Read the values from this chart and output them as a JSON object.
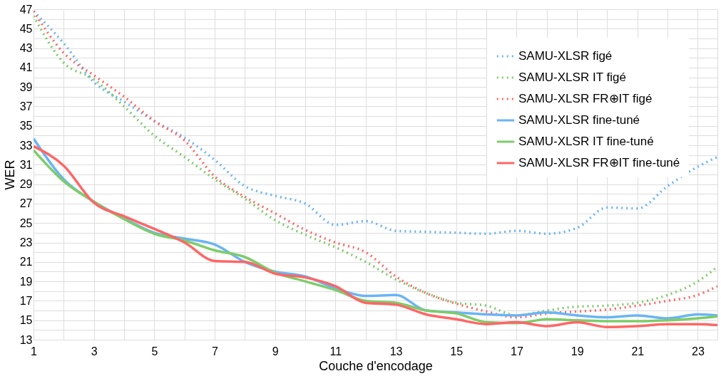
{
  "chart_data": {
    "type": "line",
    "xlabel": "Couche d'encodage",
    "ylabel": "WER",
    "x": [
      1,
      2,
      3,
      4,
      5,
      6,
      7,
      8,
      9,
      10,
      11,
      12,
      13,
      14,
      15,
      16,
      17,
      18,
      19,
      20,
      21,
      22,
      23,
      23.65
    ],
    "xlim": [
      1,
      23.65
    ],
    "xticks": [
      1,
      {
        "value": 2,
        "label": null
      },
      3,
      {
        "value": 4,
        "label": null
      },
      5,
      {
        "value": 6,
        "label": null
      },
      7,
      {
        "value": 8,
        "label": null
      },
      9,
      {
        "value": 10,
        "label": null
      },
      11,
      {
        "value": 12,
        "label": null
      },
      13,
      {
        "value": 14,
        "label": null
      },
      15,
      {
        "value": 16,
        "label": null
      },
      17,
      {
        "value": 18,
        "label": null
      },
      19,
      {
        "value": 20,
        "label": null
      },
      21,
      {
        "value": 22,
        "label": null
      },
      23
    ],
    "ylim": [
      13,
      47
    ],
    "yticks": [
      13,
      {
        "value": 14,
        "label": null
      },
      15,
      {
        "value": 16,
        "label": null
      },
      17,
      {
        "value": 18,
        "label": null
      },
      19,
      {
        "value": 20,
        "label": null
      },
      21,
      {
        "value": 22,
        "label": null
      },
      23,
      {
        "value": 24,
        "label": null
      },
      25,
      {
        "value": 26,
        "label": null
      },
      27,
      {
        "value": 28,
        "label": null
      },
      29,
      {
        "value": 30,
        "label": null
      },
      31,
      {
        "value": 32,
        "label": null
      },
      33,
      {
        "value": 34,
        "label": null
      },
      35,
      {
        "value": 36,
        "label": null
      },
      37,
      {
        "value": 38,
        "label": null
      },
      39,
      {
        "value": 40,
        "label": null
      },
      41,
      {
        "value": 42,
        "label": null
      },
      43,
      {
        "value": 44,
        "label": null
      },
      45,
      {
        "value": 46,
        "label": null
      },
      47
    ],
    "grid": true,
    "legend": "top right",
    "marker": "none",
    "series": [
      {
        "name": "SAMU-XLSR figé",
        "color": "#6ab4f5",
        "line_style": "dotted",
        "values": [
          46.8,
          43.5,
          39.5,
          37.5,
          35.5,
          33.8,
          31.5,
          28.8,
          27.8,
          27.0,
          24.8,
          25.2,
          24.2,
          24.1,
          24.0,
          23.9,
          24.2,
          23.9,
          24.5,
          26.6,
          26.5,
          28.8,
          30.8,
          31.8
        ]
      },
      {
        "name": "SAMU-XLSR IT figé",
        "color": "#7dcc6a",
        "line_style": "dotted",
        "values": [
          46.3,
          41.5,
          39.8,
          37.0,
          34.0,
          31.8,
          29.5,
          27.5,
          25.3,
          23.8,
          22.5,
          21.0,
          19.2,
          17.8,
          16.8,
          16.5,
          15.5,
          16.0,
          16.4,
          16.5,
          16.8,
          17.6,
          19.0,
          20.5
        ]
      },
      {
        "name": "SAMU-XLSR FR⊕IT figé",
        "color": "#ff6666",
        "line_style": "dotted",
        "values": [
          46.8,
          42.5,
          40.2,
          38.0,
          35.5,
          33.5,
          29.8,
          27.7,
          26.0,
          24.3,
          23.0,
          22.0,
          19.5,
          17.8,
          16.7,
          15.9,
          15.3,
          15.7,
          15.9,
          16.1,
          16.5,
          17.0,
          17.6,
          18.5
        ]
      },
      {
        "name": "SAMU-XLSR fine-tuné",
        "color": "#6ab4f5",
        "line_style": "solid",
        "values": [
          33.7,
          29.5,
          27.2,
          25.5,
          24.0,
          23.4,
          22.8,
          21.0,
          20.0,
          19.5,
          18.3,
          17.5,
          17.6,
          16.0,
          15.8,
          15.6,
          15.5,
          15.8,
          15.5,
          15.3,
          15.5,
          15.2,
          15.6,
          15.5
        ]
      },
      {
        "name": "SAMU-XLSR IT fine-tuné",
        "color": "#7dcc6a",
        "line_style": "solid",
        "values": [
          32.5,
          29.3,
          27.2,
          25.4,
          23.9,
          23.2,
          22.2,
          21.5,
          19.9,
          19.0,
          18.1,
          17.0,
          16.8,
          16.0,
          15.7,
          14.8,
          14.7,
          15.1,
          15.0,
          14.9,
          14.9,
          15.0,
          15.2,
          15.4
        ]
      },
      {
        "name": "SAMU-XLSR FR⊕IT fine-tuné",
        "color": "#ff6666",
        "line_style": "solid",
        "values": [
          32.9,
          30.9,
          27.1,
          25.7,
          24.4,
          23.0,
          21.1,
          21.0,
          19.8,
          19.4,
          18.5,
          16.8,
          16.6,
          15.6,
          15.1,
          14.6,
          14.8,
          14.4,
          14.8,
          14.3,
          14.4,
          14.6,
          14.6,
          14.5
        ]
      }
    ]
  }
}
